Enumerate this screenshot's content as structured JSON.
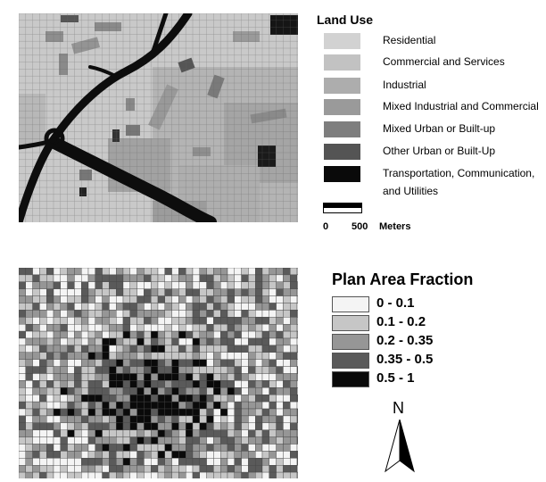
{
  "land_use_legend": {
    "title": "Land Use",
    "items": [
      {
        "label": "Residential",
        "color": "#d2d2d2"
      },
      {
        "label": "Commercial and Services",
        "color": "#c2c2c2"
      },
      {
        "label": "Industrial",
        "color": "#adadad"
      },
      {
        "label": "Mixed Industrial and Commercial",
        "color": "#9a9a9a"
      },
      {
        "label": "Mixed Urban or Built-up",
        "color": "#7e7e7e"
      },
      {
        "label": "Other Urban or Built-Up",
        "color": "#545454"
      },
      {
        "label": "Transportation, Communication,",
        "label2": "and Utilities",
        "color": "#0a0a0a"
      }
    ]
  },
  "scale_bar": {
    "start": "0",
    "end": "500",
    "unit": "Meters"
  },
  "plan_area_legend": {
    "title": "Plan Area Fraction",
    "items": [
      {
        "label": "0 - 0.1",
        "color": "#f4f4f4"
      },
      {
        "label": "0.1 - 0.2",
        "color": "#c6c6c6"
      },
      {
        "label": "0.2 - 0.35",
        "color": "#969696"
      },
      {
        "label": "0.35 - 0.5",
        "color": "#5a5a5a"
      },
      {
        "label": "0.5 - 1",
        "color": "#0a0a0a"
      }
    ]
  },
  "north_arrow": {
    "label": "N"
  }
}
